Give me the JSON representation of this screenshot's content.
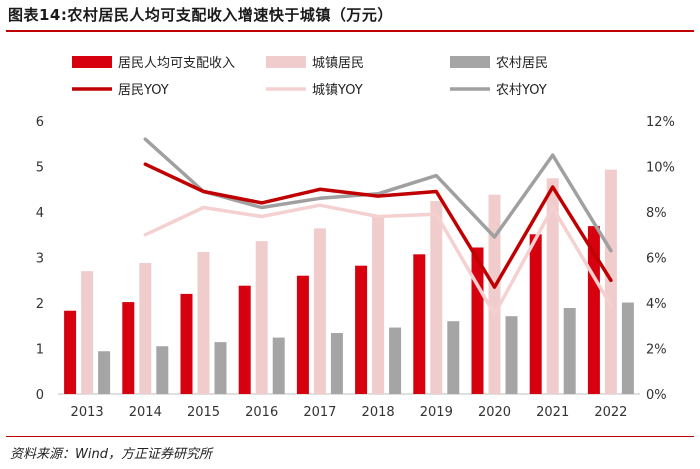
{
  "title": "图表14:农村居民人均可支配收入增速快于城镇（万元）",
  "source": "资料来源：Wind，方正证券研究所",
  "chart_data": {
    "type": "bar",
    "categories": [
      "2013",
      "2014",
      "2015",
      "2016",
      "2017",
      "2018",
      "2019",
      "2020",
      "2021",
      "2022"
    ],
    "series": [
      {
        "name": "居民人均可支配收入",
        "kind": "bar",
        "axis": "left",
        "color": "#d7000f",
        "values": [
          1.83,
          2.02,
          2.2,
          2.38,
          2.6,
          2.82,
          3.07,
          3.22,
          3.51,
          3.69
        ]
      },
      {
        "name": "城镇居民",
        "kind": "bar",
        "axis": "left",
        "color": "#f0cccc",
        "values": [
          2.7,
          2.88,
          3.12,
          3.36,
          3.64,
          3.93,
          4.24,
          4.38,
          4.74,
          4.93
        ]
      },
      {
        "name": "农村居民",
        "kind": "bar",
        "axis": "left",
        "color": "#a5a5a5",
        "values": [
          0.94,
          1.05,
          1.14,
          1.24,
          1.34,
          1.46,
          1.6,
          1.71,
          1.89,
          2.01
        ]
      },
      {
        "name": "居民YOY",
        "kind": "line",
        "axis": "right",
        "color": "#c00000",
        "values": [
          null,
          10.1,
          8.9,
          8.4,
          9.0,
          8.7,
          8.9,
          4.7,
          9.1,
          5.0
        ]
      },
      {
        "name": "城镇YOY",
        "kind": "line",
        "axis": "right",
        "color": "#f5d0d0",
        "values": [
          null,
          7.0,
          8.2,
          7.8,
          8.3,
          7.8,
          7.9,
          3.5,
          8.2,
          3.9
        ]
      },
      {
        "name": "农村YOY",
        "kind": "line",
        "axis": "right",
        "color": "#a0a0a0",
        "values": [
          null,
          11.2,
          8.9,
          8.2,
          8.6,
          8.8,
          9.6,
          6.9,
          10.5,
          6.3
        ]
      }
    ],
    "ylim": [
      0,
      6
    ],
    "yticks": [
      "0",
      "1",
      "2",
      "3",
      "4",
      "5",
      "6"
    ],
    "y2lim": [
      0,
      12
    ],
    "y2ticks": [
      "0%",
      "2%",
      "4%",
      "6%",
      "8%",
      "10%",
      "12%"
    ],
    "legend_position": "top",
    "grid": false
  }
}
